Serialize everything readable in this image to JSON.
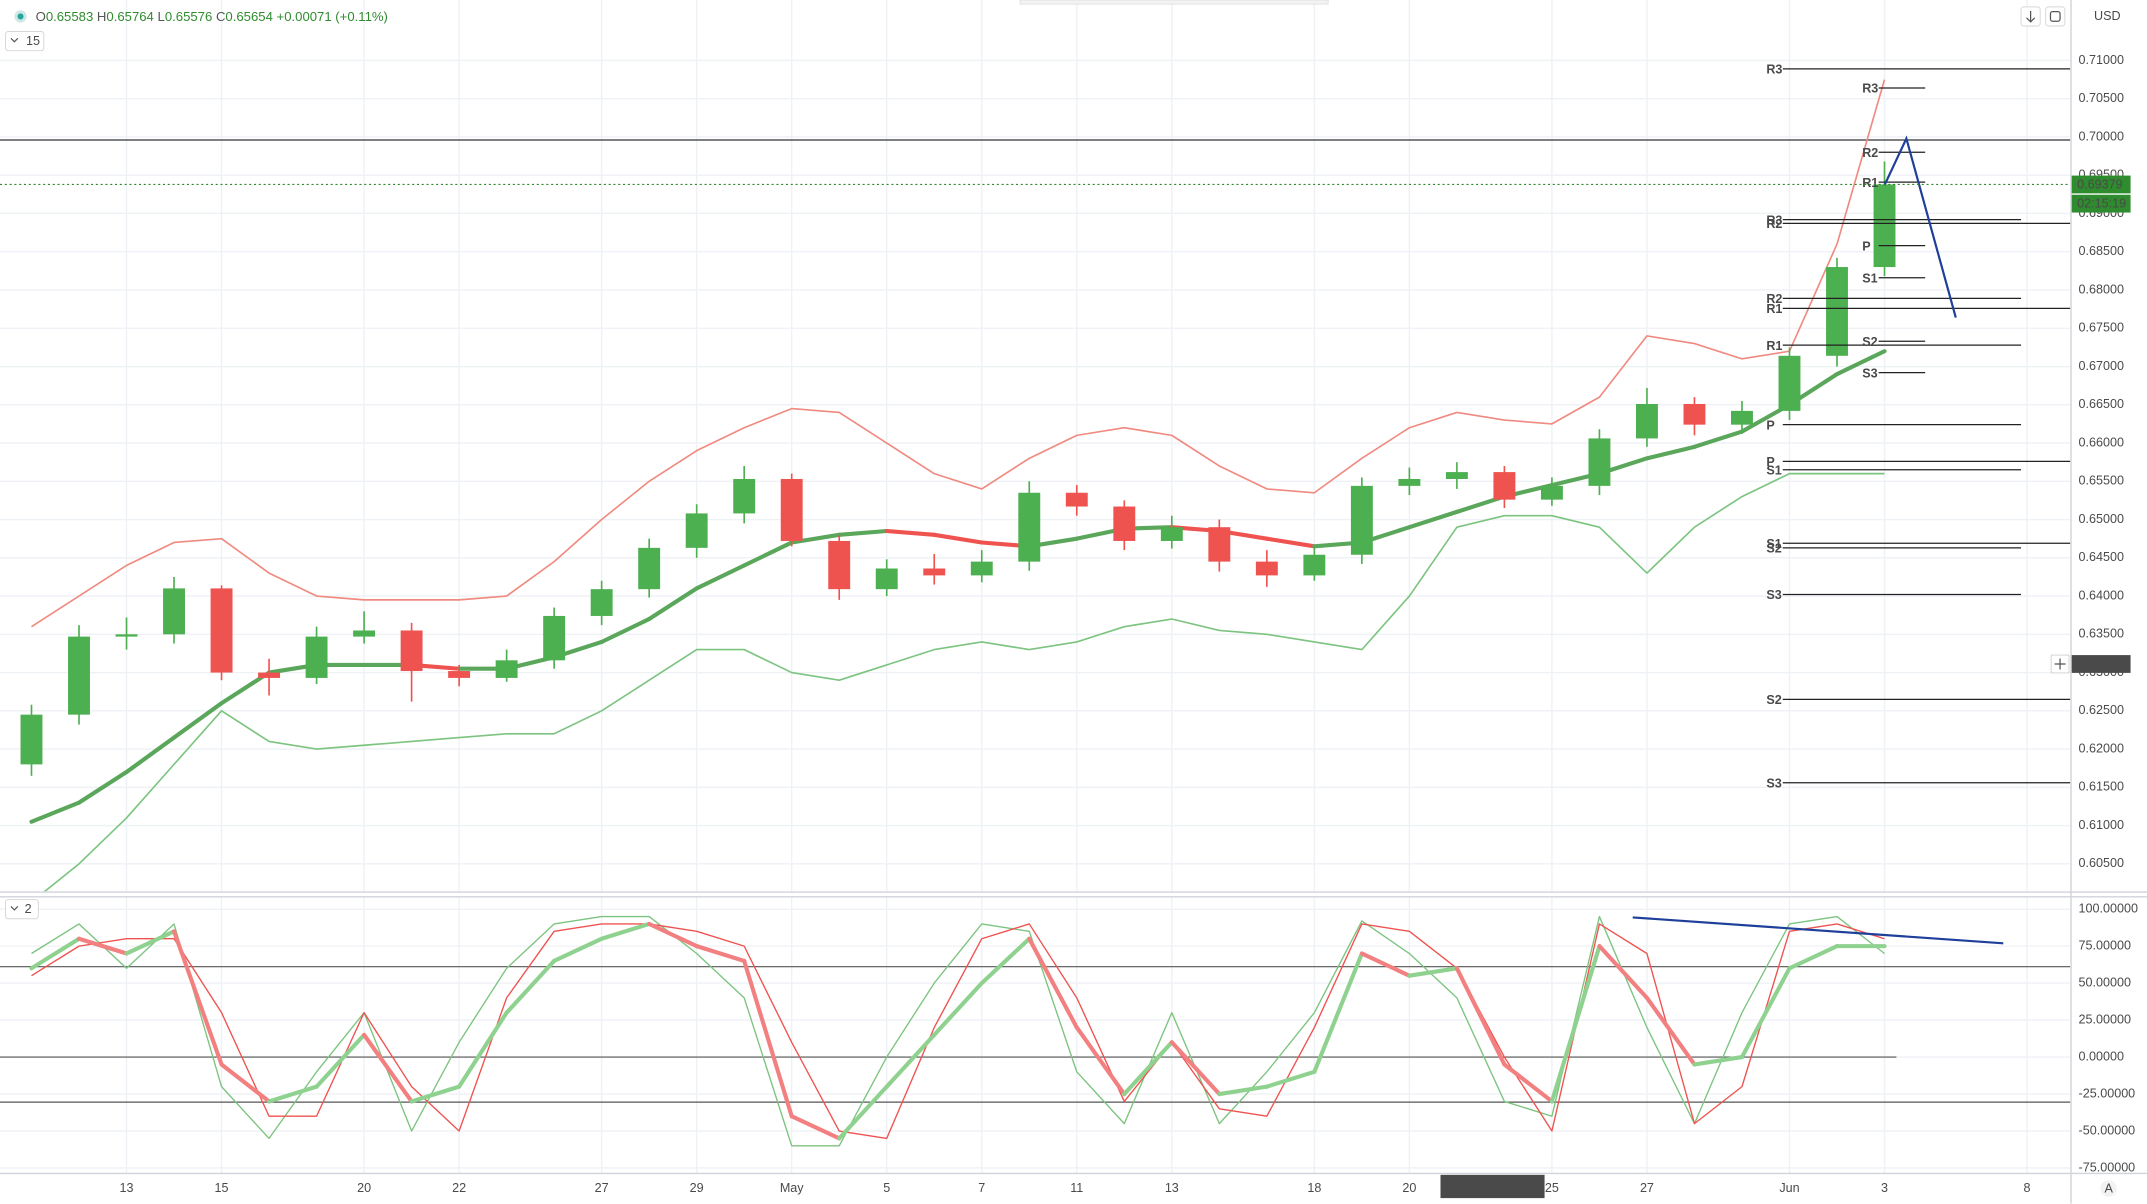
{
  "header": {
    "interval": "15",
    "ohlc": [
      {
        "key": "O",
        "value": "0.65583"
      },
      {
        "key": "H",
        "value": "0.65764"
      },
      {
        "key": "L",
        "value": "0.65576"
      },
      {
        "key": "C",
        "value": "0.65654"
      }
    ],
    "change": "+0.00071 (+0.11%)",
    "osc_interval": "2",
    "currency": "USD",
    "auto": "A"
  },
  "chart_data": [
    {
      "type": "candlestick",
      "categories": [
        null,
        null,
        "13",
        null,
        "15",
        null,
        null,
        "20",
        null,
        "22",
        null,
        null,
        "27",
        null,
        "29",
        null,
        "May",
        null,
        "5",
        null,
        "7",
        null,
        "11",
        null,
        "13",
        null,
        null,
        "18",
        null,
        "20",
        null,
        null,
        "25",
        null,
        "27",
        null,
        null,
        "Jun",
        null,
        "3",
        null,
        null,
        "8"
      ],
      "open": [
        0.618,
        0.6245,
        0.6347,
        0.635,
        0.641,
        0.63,
        0.6293,
        0.6347,
        0.6355,
        0.6302,
        0.6293,
        0.6316,
        0.6374,
        0.6409,
        0.6463,
        0.6508,
        0.6553,
        0.6472,
        0.6409,
        0.6436,
        0.6427,
        0.6445,
        0.6535,
        0.6517,
        0.6472,
        0.649,
        0.6445,
        0.6427,
        0.6454,
        0.6544,
        0.6553,
        0.6562,
        0.6526,
        0.6544,
        0.6606,
        0.6651,
        0.6624,
        0.6642,
        0.6714,
        0.683,
        null,
        null,
        null
      ],
      "high": [
        0.6258,
        0.6362,
        0.6372,
        0.6425,
        0.6414,
        0.6318,
        0.636,
        0.638,
        0.6365,
        0.631,
        0.633,
        0.6385,
        0.642,
        0.6475,
        0.652,
        0.657,
        0.656,
        0.648,
        0.6448,
        0.6455,
        0.646,
        0.655,
        0.6545,
        0.6525,
        0.6505,
        0.65,
        0.646,
        0.6465,
        0.6555,
        0.6568,
        0.6575,
        0.657,
        0.6555,
        0.6618,
        0.6672,
        0.666,
        0.6655,
        0.6725,
        0.6842,
        0.6968,
        null,
        null,
        null
      ],
      "low": [
        0.6165,
        0.6232,
        0.633,
        0.6338,
        0.629,
        0.627,
        0.6285,
        0.6338,
        0.6262,
        0.6282,
        0.6288,
        0.6305,
        0.6362,
        0.6398,
        0.645,
        0.6495,
        0.6465,
        0.6395,
        0.64,
        0.6415,
        0.6418,
        0.6433,
        0.6505,
        0.646,
        0.6462,
        0.6432,
        0.6412,
        0.642,
        0.6442,
        0.6532,
        0.654,
        0.6515,
        0.6518,
        0.6532,
        0.6595,
        0.661,
        0.6612,
        0.663,
        0.67,
        0.6818,
        null,
        null,
        null
      ],
      "close": [
        0.6245,
        0.6347,
        0.635,
        0.641,
        0.63,
        0.6293,
        0.6347,
        0.6355,
        0.6302,
        0.6293,
        0.6316,
        0.6374,
        0.6409,
        0.6463,
        0.6508,
        0.6553,
        0.6472,
        0.6409,
        0.6436,
        0.6427,
        0.6445,
        0.6535,
        0.6517,
        0.6472,
        0.649,
        0.6445,
        0.6427,
        0.6454,
        0.6544,
        0.6553,
        0.6562,
        0.6526,
        0.6544,
        0.6606,
        0.6651,
        0.6624,
        0.6642,
        0.6714,
        0.683,
        0.6938,
        null,
        null,
        null
      ],
      "up_color": "#4caf50",
      "down_color": "#ef5350",
      "ylim": [
        0.6014,
        0.7179
      ],
      "yticks": [
        {
          "value": 0.605,
          "label": "0.60500"
        },
        {
          "value": 0.61,
          "label": "0.61000"
        },
        {
          "value": 0.615,
          "label": "0.61500"
        },
        {
          "value": 0.62,
          "label": "0.62000"
        },
        {
          "value": 0.625,
          "label": "0.62500"
        },
        {
          "value": 0.63,
          "label": "0.63000"
        },
        {
          "value": 0.635,
          "label": "0.63500"
        },
        {
          "value": 0.64,
          "label": "0.64000"
        },
        {
          "value": 0.645,
          "label": "0.64500"
        },
        {
          "value": 0.65,
          "label": "0.65000"
        },
        {
          "value": 0.655,
          "label": "0.65500"
        },
        {
          "value": 0.66,
          "label": "0.66000"
        },
        {
          "value": 0.665,
          "label": "0.66500"
        },
        {
          "value": 0.67,
          "label": "0.67000"
        },
        {
          "value": 0.675,
          "label": "0.67500"
        },
        {
          "value": 0.68,
          "label": "0.68000"
        },
        {
          "value": 0.685,
          "label": "0.68500"
        },
        {
          "value": 0.69,
          "label": "0.69000"
        },
        {
          "value": 0.695,
          "label": "0.69500"
        },
        {
          "value": 0.7,
          "label": "0.70000"
        },
        {
          "value": 0.705,
          "label": "0.70500"
        },
        {
          "value": 0.71,
          "label": "0.71000"
        }
      ],
      "grid": true,
      "overlays": [
        {
          "color": "#f08a80",
          "width": 1.2,
          "values": [
            0.636,
            0.64,
            0.644,
            0.647,
            0.6475,
            0.643,
            0.64,
            0.6395,
            0.6395,
            0.6395,
            0.64,
            0.6445,
            0.65,
            0.655,
            0.659,
            0.662,
            0.6645,
            0.664,
            0.66,
            0.656,
            0.654,
            0.658,
            0.661,
            0.662,
            0.661,
            0.657,
            0.654,
            0.6535,
            0.658,
            0.662,
            0.664,
            0.663,
            0.6625,
            0.666,
            0.674,
            0.673,
            0.671,
            0.672,
            0.686,
            0.7075,
            null,
            null,
            null
          ]
        },
        {
          "color": "#7cc47f",
          "width": 1.2,
          "values": [
            0.6,
            0.605,
            0.611,
            0.618,
            0.625,
            0.621,
            0.62,
            0.6205,
            0.621,
            0.6215,
            0.622,
            0.622,
            0.625,
            0.629,
            0.633,
            0.633,
            0.63,
            0.629,
            0.631,
            0.633,
            0.634,
            0.633,
            0.634,
            0.636,
            0.637,
            0.6355,
            0.635,
            0.634,
            0.633,
            0.64,
            0.649,
            0.6505,
            0.6505,
            0.649,
            0.643,
            0.649,
            0.653,
            0.656,
            0.656,
            0.656,
            null,
            null,
            null
          ]
        },
        {
          "up_color": "#5aa65a",
          "down_color": "#ef5350",
          "width": 3,
          "values": [
            0.6105,
            0.613,
            0.617,
            0.6215,
            0.626,
            0.63,
            0.631,
            0.631,
            0.631,
            0.6305,
            0.6305,
            0.632,
            0.634,
            0.637,
            0.641,
            0.644,
            0.647,
            0.648,
            0.6485,
            0.648,
            0.647,
            0.6465,
            0.6475,
            0.6488,
            0.649,
            0.6485,
            0.6475,
            0.6465,
            0.647,
            0.649,
            0.651,
            0.653,
            0.6545,
            0.656,
            0.658,
            0.6595,
            0.6615,
            0.665,
            0.669,
            0.672,
            null,
            null,
            null
          ]
        }
      ],
      "hlines": [
        {
          "value": 0.6996,
          "color": "#333333"
        }
      ],
      "pivot_color": "#222222",
      "pivots": [
        {
          "levels": [
            {
              "label": "R3",
              "value": 0.7089
            },
            {
              "label": "R2",
              "value": 0.6887
            },
            {
              "label": "R1",
              "value": 0.6776
            },
            {
              "label": "P",
              "value": 0.6576
            },
            {
              "label": "S1",
              "value": 0.6469
            },
            {
              "label": "S2",
              "value": 0.6265
            },
            {
              "label": "S3",
              "value": 0.6156
            }
          ]
        },
        {
          "levels": [
            {
              "label": "R3",
              "value": 0.6892
            },
            {
              "label": "R2",
              "value": 0.6789
            },
            {
              "label": "R1",
              "value": 0.6728
            },
            {
              "label": "P",
              "value": 0.6624
            },
            {
              "label": "S1",
              "value": 0.6565
            },
            {
              "label": "S2",
              "value": 0.6463
            },
            {
              "label": "S3",
              "value": 0.6402
            }
          ]
        },
        {
          "levels": [
            {
              "label": "R3",
              "value": 0.7064
            },
            {
              "label": "R2",
              "value": 0.698
            },
            {
              "label": "R1",
              "value": 0.6941
            },
            {
              "label": "P",
              "value": 0.6858
            },
            {
              "label": "S1",
              "value": 0.6816
            },
            {
              "label": "S2",
              "value": 0.6733
            },
            {
              "label": "S3",
              "value": 0.6692
            }
          ]
        }
      ],
      "last_price": {
        "value": 0.69379,
        "label": "0.69379",
        "countdown": "02:15:19",
        "color": "#2e8b2e"
      },
      "crosshair": {
        "x": 30.75,
        "label": "21 May '20 18:00",
        "price": {
          "value": 0.63112,
          "label": "0.63112"
        }
      },
      "drawings": [
        {
          "color": "#1e3f9a",
          "x": [
            39,
            39.46,
            40.5
          ],
          "y": [
            0.6937,
            0.6998,
            0.6764
          ]
        }
      ]
    },
    {
      "type": "oscillator",
      "ylim": [
        -78.7,
        108.3
      ],
      "yticks": [
        {
          "value": 100,
          "label": "100.00000"
        },
        {
          "value": 75,
          "label": "75.00000"
        },
        {
          "value": 50,
          "label": "50.00000"
        },
        {
          "value": 25,
          "label": "25.00000"
        },
        {
          "value": 0,
          "label": "0.00000"
        },
        {
          "value": -25,
          "label": "-25.00000"
        },
        {
          "value": -50,
          "label": "-50.00000"
        },
        {
          "value": -75,
          "label": "-75.00000"
        }
      ],
      "lines": [
        {
          "color": "#7cc47f",
          "width": 1,
          "values": [
            70,
            90,
            60,
            90,
            -20,
            -55,
            -10,
            30,
            -50,
            10,
            60,
            90,
            95,
            95,
            70,
            40,
            -60,
            -60,
            0,
            50,
            90,
            85,
            -10,
            -45,
            30,
            -45,
            -10,
            30,
            92,
            70,
            40,
            -30,
            -40,
            95,
            20,
            -45,
            30,
            90,
            95,
            70,
            null,
            null,
            null
          ]
        },
        {
          "color": "#ef5350",
          "width": 1,
          "values": [
            55,
            75,
            80,
            80,
            30,
            -40,
            -40,
            30,
            -20,
            -50,
            40,
            85,
            90,
            90,
            85,
            75,
            10,
            -50,
            -55,
            20,
            80,
            90,
            40,
            -30,
            10,
            -35,
            -40,
            20,
            90,
            85,
            60,
            0,
            -50,
            90,
            70,
            -45,
            -20,
            85,
            90,
            80,
            null,
            null,
            null
          ]
        },
        {
          "up_color": "#8fd18f",
          "down_color": "#f28080",
          "width": 3,
          "values": [
            60,
            80,
            70,
            85,
            -5,
            -30,
            -20,
            15,
            -30,
            -20,
            30,
            65,
            80,
            90,
            75,
            65,
            -40,
            -55,
            -20,
            15,
            50,
            80,
            20,
            -25,
            10,
            -25,
            -20,
            -10,
            70,
            55,
            60,
            -5,
            -30,
            75,
            40,
            -5,
            0,
            60,
            75,
            75,
            null,
            null,
            null
          ]
        }
      ],
      "hlines": [
        {
          "value": 61.1,
          "color": "#555555"
        },
        {
          "value": 0,
          "color": "#555555"
        },
        {
          "value": -30.5,
          "color": "#555555"
        }
      ],
      "drawings": [
        {
          "color": "#1e3f9a",
          "x": [
            33.7,
            41.5
          ],
          "y": [
            94.4,
            76.9
          ]
        }
      ]
    }
  ]
}
